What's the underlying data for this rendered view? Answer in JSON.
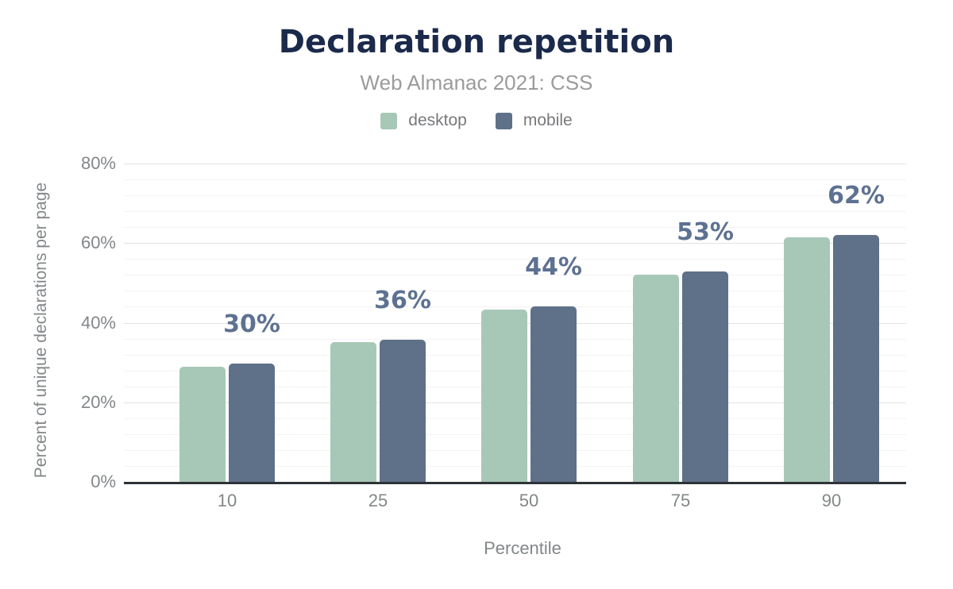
{
  "header": {
    "title": "Declaration repetition",
    "subtitle": "Web Almanac 2021: CSS"
  },
  "chart_data": {
    "type": "bar",
    "title": "Declaration repetition",
    "subtitle": "Web Almanac 2021: CSS",
    "categories": [
      "10",
      "25",
      "50",
      "75",
      "90"
    ],
    "series": [
      {
        "name": "desktop",
        "color": "#a7c8b7",
        "values": [
          28.9,
          35.2,
          43.2,
          52.1,
          61.5
        ]
      },
      {
        "name": "mobile",
        "color": "#5f7089",
        "values": [
          29.7,
          35.7,
          44.0,
          52.9,
          62.1
        ]
      }
    ],
    "bar_labels": {
      "labeled_series": "mobile",
      "texts": [
        "30%",
        "36%",
        "44%",
        "53%",
        "62%"
      ],
      "color": "#5d7191"
    },
    "xlabel": "Percentile",
    "ylabel": "Percent of unique declarations per page",
    "ylim": [
      0,
      80
    ],
    "yticks": [
      {
        "value": 0,
        "label": "0%"
      },
      {
        "value": 20,
        "label": "20%"
      },
      {
        "value": 40,
        "label": "40%"
      },
      {
        "value": 60,
        "label": "60%"
      },
      {
        "value": 80,
        "label": "80%"
      }
    ],
    "grid": {
      "on": true,
      "minor_step": 4,
      "major_step": 20,
      "minor_color": "#f3f3f3",
      "major_color": "#e2e2e2"
    },
    "legend_position": "top",
    "colors": {
      "title": "#1b2a4b",
      "subtitle": "#9b9b9b",
      "tick_text": "#838789",
      "legend_text": "#77797c",
      "axis_line": "#2e3338",
      "background": "#ffffff"
    }
  }
}
